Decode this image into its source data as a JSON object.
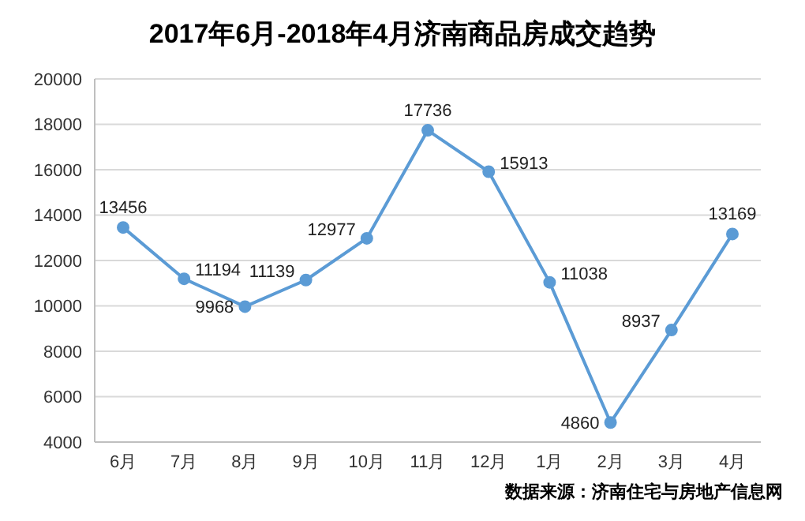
{
  "chart_data": {
    "type": "line",
    "title": "2017年6月-2018年4月济南商品房成交趋势",
    "categories": [
      "6月",
      "7月",
      "8月",
      "9月",
      "10月",
      "11月",
      "12月",
      "1月",
      "2月",
      "3月",
      "4月"
    ],
    "series": [
      {
        "color": "#5b9bd5",
        "values": [
          13456,
          11194,
          9968,
          11139,
          12977,
          17736,
          15913,
          11038,
          4860,
          8937,
          13169
        ]
      }
    ],
    "ylim": [
      4000,
      20000
    ],
    "yticks": [
      4000,
      6000,
      8000,
      10000,
      12000,
      14000,
      16000,
      18000,
      20000
    ],
    "grid": "y",
    "marker": "circle",
    "data_labels": true,
    "annotations": [
      "数据来源：济南住宅与房地产信息网"
    ]
  }
}
